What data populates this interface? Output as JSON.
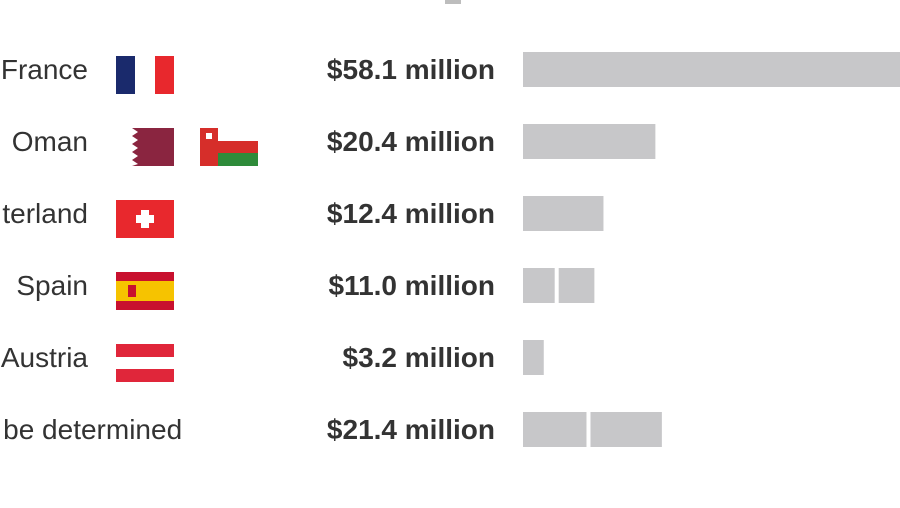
{
  "chart_data": {
    "type": "bar",
    "categories": [
      "France",
      "Oman",
      "terland",
      "Spain",
      "Austria",
      "ot be determined"
    ],
    "values": [
      58.1,
      20.4,
      12.4,
      11.0,
      3.2,
      21.4
    ],
    "value_labels": [
      "$58.1 million",
      "$20.4 million",
      "$12.4 million",
      "$11.0 million",
      "$3.2 million",
      "$21.4 million"
    ],
    "segments": [
      [
        58.1
      ],
      [
        20.4
      ],
      [
        12.4
      ],
      [
        5.5,
        5.5
      ],
      [
        3.2
      ],
      [
        10.4,
        11.0
      ]
    ],
    "orientation": "horizontal",
    "xlim": [
      0,
      58.1
    ],
    "bar_color": "#c7c7c9",
    "title": "",
    "xlabel": "",
    "ylabel": "",
    "grid": false
  },
  "flags": [
    [
      "flag-france-icon"
    ],
    [
      "flag-qatar-icon",
      "flag-oman-icon"
    ],
    [
      "flag-switzerland-icon"
    ],
    [
      "flag-spain-icon"
    ],
    [
      "flag-austria-icon"
    ],
    []
  ]
}
